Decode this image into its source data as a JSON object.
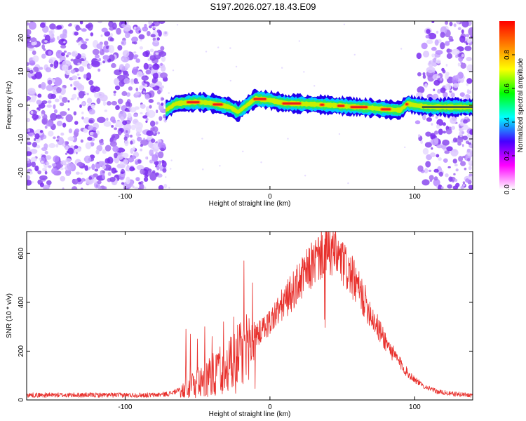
{
  "title": "S197.2026.027.18.43.E09",
  "chart_data": [
    {
      "type": "heatmap",
      "xlabel": "Height of straight line (km)",
      "ylabel": "Frequency (Hz)",
      "xlim": [
        -168,
        140
      ],
      "ylim": [
        -25,
        25
      ],
      "xticks": [
        -100,
        0,
        100
      ],
      "xtick_labels": [
        "-100",
        "0",
        "100"
      ],
      "yticks": [
        -20,
        -10,
        0,
        10,
        20
      ],
      "ytick_labels": [
        "-20",
        "-10",
        "0",
        "10",
        "20"
      ],
      "colorbar": {
        "label": "Normalized spectral amplitude",
        "range": [
          0,
          1
        ],
        "ticks": [
          0.0,
          0.2,
          0.4,
          0.6,
          0.8
        ],
        "tick_labels": [
          "0.0",
          "0.2",
          "0.4",
          "0.6",
          "0.8"
        ],
        "colors": [
          "#ffffff",
          "#ff00ff",
          "#4400ff",
          "#00ffff",
          "#00ff00",
          "#ffff00",
          "#ff8000",
          "#ff0000"
        ]
      },
      "noise_regions": [
        [
          -168,
          -72
        ],
        [
          102,
          140
        ]
      ],
      "trace": {
        "x_range": [
          -72,
          140
        ],
        "center_freq": [
          [
            -72,
            -1.5
          ],
          [
            -65,
            0.5
          ],
          [
            -50,
            1.0
          ],
          [
            -40,
            0.6
          ],
          [
            -28,
            -0.5
          ],
          [
            -22,
            -2.0
          ],
          [
            -16,
            0.0
          ],
          [
            -10,
            2.0
          ],
          [
            0,
            1.5
          ],
          [
            10,
            0.6
          ],
          [
            30,
            0.3
          ],
          [
            50,
            -0.2
          ],
          [
            70,
            -0.8
          ],
          [
            80,
            -1.2
          ],
          [
            90,
            -1.5
          ],
          [
            95,
            0.5
          ],
          [
            100,
            0.0
          ],
          [
            110,
            -0.5
          ],
          [
            140,
            -0.6
          ]
        ],
        "hot_segments": [
          [
            -58,
            -48
          ],
          [
            -40,
            -32
          ],
          [
            -12,
            -2
          ],
          [
            8,
            22
          ],
          [
            34,
            38
          ],
          [
            46,
            52
          ],
          [
            55,
            68
          ],
          [
            76,
            84
          ],
          [
            93,
            96
          ]
        ]
      }
    },
    {
      "type": "line",
      "xlabel": "Height of straight line (km)",
      "ylabel": "SNR (10 * v/v)",
      "xlim": [
        -168,
        140
      ],
      "ylim": [
        0,
        690
      ],
      "xticks": [
        -100,
        0,
        100
      ],
      "xtick_labels": [
        "-100",
        "0",
        "100"
      ],
      "yticks": [
        0,
        200,
        400,
        600
      ],
      "ytick_labels": [
        "0",
        "200",
        "400",
        "600"
      ],
      "color": "#e8302c",
      "series": [
        {
          "name": "SNR",
          "envelope_x": [
            -168,
            -80,
            -70,
            -60,
            -50,
            -40,
            -30,
            -20,
            -10,
            0,
            10,
            20,
            30,
            38,
            45,
            55,
            65,
            75,
            85,
            95,
            105,
            115,
            125,
            140
          ],
          "envelope_y": [
            20,
            20,
            25,
            45,
            90,
            120,
            170,
            210,
            260,
            320,
            400,
            480,
            560,
            615,
            600,
            520,
            410,
            290,
            190,
            110,
            60,
            35,
            25,
            20
          ],
          "spikes": [
            {
              "x": -58,
              "y": 290
            },
            {
              "x": -55,
              "y": 270
            },
            {
              "x": -50,
              "y": 250
            },
            {
              "x": -45,
              "y": 300
            },
            {
              "x": -40,
              "y": 260
            },
            {
              "x": -32,
              "y": 320
            },
            {
              "x": -25,
              "y": 340
            },
            {
              "x": -18,
              "y": 570
            },
            {
              "x": -12,
              "y": 480
            },
            {
              "x": 38,
              "y": 660
            }
          ]
        }
      ]
    }
  ]
}
